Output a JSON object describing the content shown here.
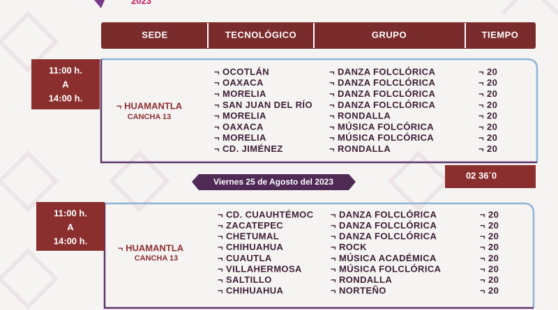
{
  "header": {
    "logo_year": "2023",
    "columns": [
      "SEDE",
      "TECNOLÓGICO",
      "GRUPO",
      "TIEMPO"
    ]
  },
  "sessions": [
    {
      "time": {
        "start": "11:00 h.",
        "separator": "A",
        "end": "14:00 h."
      },
      "sede": "¬ HUAMANTLA",
      "venue": "CANCHA 13",
      "rows": [
        [
          "¬ OCOTLÁN",
          "¬ DANZA FOLCLÓRICA",
          "¬ 20"
        ],
        [
          "¬ OAXACA",
          "¬ DANZA FOLCLÓRICA",
          "¬ 20"
        ],
        [
          "¬ MORELIA",
          "¬ DANZA FOLCLÓRICA",
          "¬ 20"
        ],
        [
          "¬ SAN JUAN DEL RÍO",
          "¬ DANZA FOLCLÓRICA",
          "¬ 20"
        ],
        [
          "¬ MORELIA",
          "¬ RONDALLA",
          "¬ 20"
        ],
        [
          "¬ OAXACA",
          "¬ MÚSICA FOLCÓRICA",
          "¬ 20"
        ],
        [
          "¬ MORELIA",
          "¬ MÚSICA FOLCÓRICA",
          "¬ 20"
        ],
        [
          "¬ CD. JIMÉNEZ",
          "¬ RONDALLA",
          "¬ 20"
        ]
      ],
      "total": "02 36´0"
    },
    {
      "time": {
        "start": "11:00 h.",
        "separator": "A",
        "end": "14:00 h."
      },
      "sede": "¬ HUAMANTLA",
      "venue": "CANCHA 13",
      "rows": [
        [
          "¬ CD. CUAUHTÉMOC",
          "¬ DANZA FOLCLÓRICA",
          "¬ 20"
        ],
        [
          "¬ ZACATEPEC",
          "¬ DANZA FOLCLÓRICA",
          "¬ 20"
        ],
        [
          "¬ CHETUMAL",
          "¬ DANZA FOLCLÓRICA",
          "¬ 20"
        ],
        [
          "¬ CHIHUAHUA",
          "¬ ROCK",
          "¬ 20"
        ],
        [
          "¬ CUAUTLA",
          "¬ MÚSICA ACADÉMICA",
          "¬ 20"
        ],
        [
          "¬ VILLAHERMOSA",
          "¬ MÚSICA FOLCLÓRICA",
          "¬ 20"
        ],
        [
          "¬ SALTILLO",
          "¬ RONDALLA",
          "¬ 20"
        ],
        [
          "¬ CHIHUAHUA",
          "¬ NORTEÑO",
          "¬ 20"
        ]
      ]
    }
  ],
  "date_banner": "Viernes 25 de Agosto del 2023"
}
